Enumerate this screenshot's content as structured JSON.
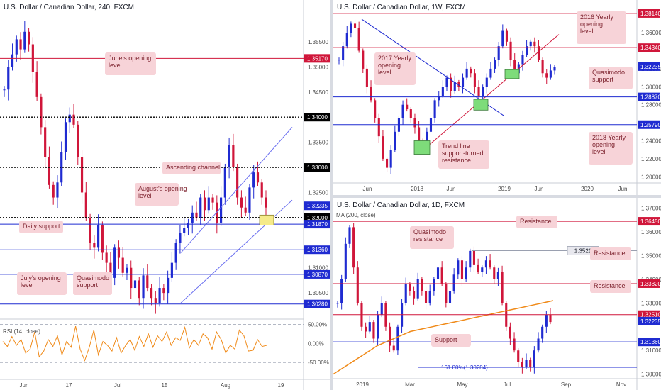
{
  "colors": {
    "up": "#1f2bd1",
    "down": "#d0163a",
    "support_line": "#1f2bd1",
    "resistance_line": "#d0163a",
    "level_dotted": "#000000",
    "channel": "#6a6ff0",
    "ma": "#f08a18",
    "rsi": "#f08a18",
    "note_bg": "#f7d3d8",
    "note_text": "#7a1e2a",
    "zone_yellow": "#f5ea8a",
    "zone_green": "#7edc7a",
    "price_tag_blue": "#1f2bd1",
    "price_tag_red": "#d0163a",
    "price_tag_gray": "#e8e8ee"
  },
  "chart_data": [
    {
      "type": "candlestick",
      "title": "U.S. Dollar / Canadian Dollar, 240, FXCM",
      "ylim": [
        1.3005,
        1.3605
      ],
      "y_ticks": [
        "1.35500",
        "1.35000",
        "1.34500",
        "1.33500",
        "1.32500",
        "1.31000",
        "1.30500"
      ],
      "x_ticks": [
        "Jun",
        "17",
        "Jul",
        "15",
        "Aug",
        "19"
      ],
      "price_path": [
        1.3455,
        1.35,
        1.3525,
        1.3555,
        1.3535,
        1.357,
        1.3545,
        1.349,
        1.344,
        1.338,
        1.332,
        1.3265,
        1.324,
        1.327,
        1.333,
        1.339,
        1.3405,
        1.3385,
        1.332,
        1.325,
        1.32,
        1.315,
        1.314,
        1.3185,
        1.313,
        1.311,
        1.308,
        1.314,
        1.312,
        1.309,
        1.31,
        1.306,
        1.3075,
        1.304,
        1.3085,
        1.306,
        1.304,
        1.303,
        1.306,
        1.305,
        1.308,
        1.311,
        1.315,
        1.317,
        1.318,
        1.319,
        1.321,
        1.32,
        1.324,
        1.3215,
        1.324,
        1.323,
        1.319,
        1.324,
        1.33,
        1.3345,
        1.33,
        1.324,
        1.322,
        1.321,
        1.326,
        1.329,
        1.327,
        1.324,
        1.322
      ],
      "levels": [
        {
          "price": "1.35170",
          "style": "red",
          "tag": "red"
        },
        {
          "price": "1.34000",
          "style": "dotted",
          "tag": "black"
        },
        {
          "price": "1.33000",
          "style": "dotted",
          "tag": "black"
        },
        {
          "price": "1.32000",
          "style": "dotted",
          "tag": "black"
        },
        {
          "price": "1.31870",
          "style": "blue",
          "tag": "blue"
        },
        {
          "price": "1.31360",
          "style": "blue",
          "tag": "blue"
        },
        {
          "price": "1.30870",
          "style": "blue",
          "tag": "blue"
        },
        {
          "price": "1.30280",
          "style": "blue",
          "tag": "blue"
        }
      ],
      "current_price": "1.32235",
      "annotations": [
        "June's opening level",
        "Ascending channel",
        "August's opening level",
        "Daily support",
        "July's opening level",
        "Quasimodo support"
      ],
      "rsi": {
        "label": "RSI (14, close)",
        "ticks": [
          "50.00%",
          "0.00%",
          "-50.00%"
        ],
        "values": [
          5,
          -8,
          18,
          -5,
          10,
          -25,
          -15,
          30,
          -35,
          -20,
          10,
          -8,
          20,
          -30,
          5,
          -10,
          45,
          -15,
          -45,
          -10,
          35,
          -30,
          5,
          -5,
          -20,
          15,
          -25,
          -5,
          10,
          -18,
          18,
          -8,
          25,
          -10,
          20,
          5,
          30,
          -5,
          15,
          8,
          42,
          -12,
          10,
          -5,
          25,
          15,
          -15,
          30,
          10,
          -25,
          -5,
          -15,
          35,
          20,
          -20,
          -18,
          10,
          -8,
          -5
        ]
      }
    },
    {
      "type": "candlestick",
      "title": "U.S. Dollar / Canadian Dollar, 1W, FXCM",
      "ylim": [
        1.19,
        1.39
      ],
      "y_ticks": [
        "1.36000",
        "1.32000",
        "1.30000",
        "1.28000",
        "1.24000",
        "1.22000",
        "1.20000"
      ],
      "x_ticks": [
        "Jun",
        "2018",
        "Jun",
        "2019",
        "Jun",
        "2020",
        "Jun"
      ],
      "price_path": [
        1.33,
        1.345,
        1.36,
        1.37,
        1.365,
        1.34,
        1.32,
        1.3,
        1.285,
        1.265,
        1.245,
        1.22,
        1.21,
        1.23,
        1.25,
        1.265,
        1.28,
        1.275,
        1.265,
        1.255,
        1.24,
        1.235,
        1.25,
        1.265,
        1.285,
        1.29,
        1.3,
        1.31,
        1.295,
        1.305,
        1.3,
        1.31,
        1.32,
        1.315,
        1.3,
        1.29,
        1.3,
        1.31,
        1.32,
        1.33,
        1.345,
        1.362,
        1.35,
        1.33,
        1.315,
        1.325,
        1.335,
        1.345,
        1.35,
        1.345,
        1.33,
        1.315,
        1.31,
        1.318,
        1.322
      ],
      "levels": [
        {
          "price": "1.38140",
          "style": "red",
          "tag": "red"
        },
        {
          "price": "1.34340",
          "style": "red",
          "tag": "red"
        },
        {
          "price": "1.28870",
          "style": "blue",
          "tag": "blue"
        },
        {
          "price": "1.25790",
          "style": "blue",
          "tag": "blue"
        }
      ],
      "current_price": "1.32235",
      "annotations": [
        "2016 Yearly opening level",
        "2017 Yearly opening level",
        "Quasimodo support",
        "2018 Yearly opening level",
        "Trend line support-turned resistance"
      ]
    },
    {
      "type": "candlestick",
      "title": "U.S. Dollar / Canadian Dollar, 1D, FXCM",
      "ylim": [
        1.296,
        1.372
      ],
      "y_ticks": [
        "1.37000",
        "1.36000",
        "1.35000",
        "1.34000",
        "1.33000",
        "1.31000",
        "1.30000"
      ],
      "x_ticks": [
        "2019",
        "Mar",
        "May",
        "Jul",
        "Sep",
        "Nov"
      ],
      "price_path": [
        1.33,
        1.34,
        1.355,
        1.362,
        1.345,
        1.33,
        1.32,
        1.318,
        1.322,
        1.315,
        1.325,
        1.33,
        1.32,
        1.312,
        1.31,
        1.32,
        1.33,
        1.338,
        1.335,
        1.332,
        1.34,
        1.335,
        1.33,
        1.335,
        1.34,
        1.345,
        1.338,
        1.33,
        1.335,
        1.342,
        1.348,
        1.34,
        1.345,
        1.352,
        1.346,
        1.343,
        1.345,
        1.348,
        1.345,
        1.34,
        1.343,
        1.33,
        1.32,
        1.315,
        1.31,
        1.305,
        1.303,
        1.306,
        1.303,
        1.31,
        1.315,
        1.32,
        1.325,
        1.322
      ],
      "ma_label": "MA (200, close)",
      "ma_path": [
        1.3,
        1.303,
        1.306,
        1.309,
        1.312,
        1.314,
        1.316,
        1.318,
        1.319,
        1.32,
        1.321,
        1.322,
        1.323,
        1.324,
        1.325,
        1.326,
        1.327,
        1.328,
        1.329,
        1.33,
        1.331
      ],
      "levels": [
        {
          "price": "1.36450",
          "style": "red",
          "tag": "red"
        },
        {
          "price": "1.35210",
          "style": "gray",
          "tag": "gray",
          "short": "1.3521"
        },
        {
          "price": "1.33820",
          "style": "red",
          "tag": "red"
        },
        {
          "price": "1.32510",
          "style": "red",
          "tag": "red"
        },
        {
          "price": "1.31360",
          "style": "blue",
          "tag": "blue"
        },
        {
          "price": "1.30284",
          "style": "thinblue",
          "tag": "none"
        }
      ],
      "current_price": "1.32235",
      "fib_label": "161.80%(1.30284)",
      "annotations": [
        "Resistance",
        "Quasimodo resistance",
        "Resistance",
        "Resistance",
        "Support"
      ]
    }
  ]
}
